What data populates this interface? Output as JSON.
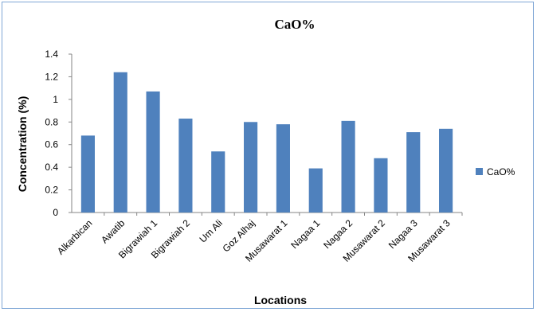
{
  "chart_data": {
    "type": "bar",
    "title": "CaO%",
    "xlabel": "Locations",
    "ylabel": "Concentration (%)",
    "categories": [
      "Alkarbican",
      "Awatib",
      "Bigrawiah 1",
      "Bigrawiah 2",
      "Um Ali",
      "Goz Alhaj",
      "Musawarat 1",
      "Nagaa 1",
      "Nagaa 2",
      "Musawarat 2",
      "Nagaa 3",
      "Musawarat 3"
    ],
    "series": [
      {
        "name": "CaO%",
        "values": [
          0.68,
          1.24,
          1.07,
          0.83,
          0.54,
          0.8,
          0.78,
          0.39,
          0.81,
          0.48,
          0.71,
          0.74
        ]
      }
    ],
    "ylim": [
      0,
      1.4
    ],
    "yticks": [
      "0",
      "0.2",
      "0.4",
      "0.6",
      "0.8",
      "1",
      "1.2",
      "1.4"
    ],
    "grid": false,
    "legend": "right",
    "bar_color": "#4f81bd",
    "frame_color": "#7fa7d6"
  }
}
